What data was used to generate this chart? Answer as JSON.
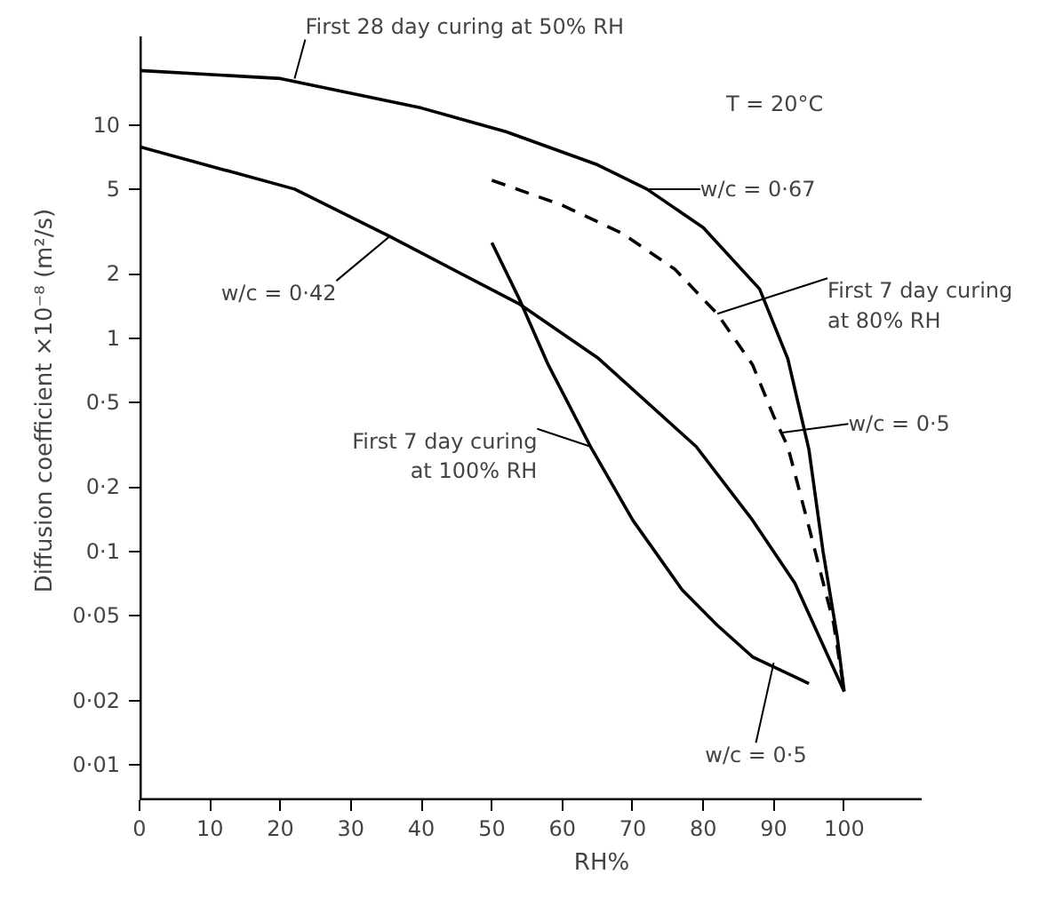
{
  "chart_data": {
    "type": "line",
    "xlabel": "RH%",
    "ylabel": "Diffusion coefficient ×10⁻⁸ (m²/s)",
    "log": "y",
    "grid": false,
    "xlim": [
      0,
      111
    ],
    "xticks": [
      0,
      10,
      20,
      30,
      40,
      50,
      60,
      70,
      80,
      90,
      100
    ],
    "ylim": [
      0.0068,
      26
    ],
    "yticks": [
      {
        "value": 0.01,
        "label": "0·01"
      },
      {
        "value": 0.02,
        "label": "0·02"
      },
      {
        "value": 0.05,
        "label": "0·05"
      },
      {
        "value": 0.1,
        "label": "0·1"
      },
      {
        "value": 0.2,
        "label": "0·2"
      },
      {
        "value": 0.5,
        "label": "0·5"
      },
      1,
      2,
      5,
      10
    ],
    "series": [
      {
        "color": "#000000",
        "line_style": "solid",
        "x": [
          0,
          20,
          40,
          52,
          65,
          72,
          80,
          88,
          92,
          95,
          97,
          99,
          100
        ],
        "values": [
          18,
          16.5,
          12,
          9.3,
          6.5,
          5,
          3.3,
          1.7,
          0.8,
          0.3,
          0.1,
          0.04,
          0.022
        ]
      },
      {
        "color": "#000000",
        "line_style": "solid",
        "x": [
          0,
          22,
          35.5,
          54,
          65,
          79,
          87,
          93,
          100
        ],
        "values": [
          7.9,
          5,
          3,
          1.44,
          0.81,
          0.31,
          0.14,
          0.071,
          0.022
        ]
      },
      {
        "color": "#000000",
        "line_style": "dashed",
        "x": [
          50,
          60,
          68.5,
          76,
          82,
          87,
          90,
          92,
          95,
          98.5,
          100
        ],
        "values": [
          5.5,
          4.2,
          3.1,
          2.1,
          1.3,
          0.75,
          0.43,
          0.31,
          0.13,
          0.046,
          0.022
        ]
      },
      {
        "color": "#000000",
        "line_style": "solid",
        "x": [
          50,
          54,
          58,
          64,
          70,
          77,
          82,
          87,
          95
        ],
        "values": [
          2.8,
          1.5,
          0.75,
          0.31,
          0.14,
          0.066,
          0.045,
          0.032,
          0.024
        ]
      }
    ],
    "annotations": [
      {
        "text": "First 28 day curing at 50% RH",
        "x": 22,
        "y": 16.5
      },
      "T = 20°C",
      {
        "text": "w/c = 0·67",
        "x": 72,
        "y": 5
      },
      {
        "text": "First 7 day curing\nat 80% RH",
        "x": 82,
        "y": 1.3
      },
      {
        "text": "w/c = 0·5",
        "x": 91,
        "y": 0.36
      },
      {
        "text": "w/c = 0·42",
        "x": 35.5,
        "y": 3
      },
      {
        "text": "First 7 day curing\nat 100% RH",
        "x": 64,
        "y": 0.31
      },
      {
        "text": "w/c = 0·5",
        "x": 90,
        "y": 0.03
      }
    ]
  }
}
